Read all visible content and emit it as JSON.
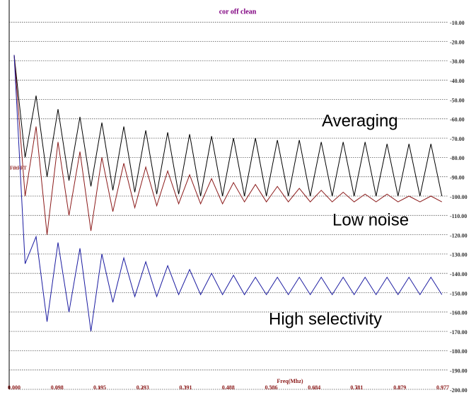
{
  "chart_data": {
    "type": "line",
    "title": "cor off clean",
    "xlabel": "Freq(Mhz)",
    "ylabel": "FiltFFT",
    "x": [
      0,
      0.025,
      0.05,
      0.075,
      0.1,
      0.125,
      0.15,
      0.175,
      0.2,
      0.225,
      0.25,
      0.275,
      0.3,
      0.325,
      0.35,
      0.375,
      0.4,
      0.425,
      0.45,
      0.475,
      0.5,
      0.525,
      0.55,
      0.575,
      0.6,
      0.625,
      0.65,
      0.675,
      0.7,
      0.725,
      0.75,
      0.775,
      0.8,
      0.825,
      0.85,
      0.875,
      0.9,
      0.925,
      0.95,
      0.975
    ],
    "series": [
      {
        "name": "Averaging",
        "color": "#000000",
        "values": [
          -27,
          -80,
          -48,
          -90,
          -55,
          -92,
          -59,
          -95,
          -62,
          -97,
          -64,
          -98,
          -66,
          -99,
          -67,
          -99,
          -68,
          -100,
          -69,
          -100,
          -70,
          -100,
          -70,
          -100,
          -71,
          -100,
          -71,
          -100,
          -72,
          -100,
          -72,
          -100,
          -72,
          -100,
          -73,
          -100,
          -73,
          -100,
          -73,
          -100
        ]
      },
      {
        "name": "Low noise",
        "color": "#8b1a1a",
        "values": [
          -27,
          -100,
          -64,
          -120,
          -72,
          -110,
          -77,
          -118,
          -80,
          -108,
          -83,
          -106,
          -85,
          -105,
          -87,
          -104,
          -89,
          -104,
          -91,
          -104,
          -93,
          -103,
          -94,
          -103,
          -95,
          -103,
          -96,
          -103,
          -97,
          -103,
          -98,
          -103,
          -99,
          -103,
          -99,
          -103,
          -100,
          -103,
          -100,
          -103
        ]
      },
      {
        "name": "High selectivity",
        "color": "#1a1aa0",
        "values": [
          -27,
          -135,
          -121,
          -165,
          -124,
          -160,
          -127,
          -170,
          -130,
          -155,
          -132,
          -152,
          -134,
          -152,
          -136,
          -151,
          -138,
          -151,
          -140,
          -151,
          -141,
          -151,
          -142,
          -151,
          -142,
          -151,
          -142,
          -151,
          -142,
          -151,
          -142,
          -151,
          -142,
          -151,
          -142,
          -151,
          -142,
          -151,
          -142,
          -151
        ]
      }
    ],
    "xlim": [
      0,
      0.977
    ],
    "xticks": [
      {
        "value": 0,
        "label": "0.000"
      },
      0.098,
      0.195,
      0.293,
      0.391,
      0.488,
      0.586,
      0.684,
      0.781,
      0.879,
      0.977
    ],
    "ylim": [
      -200,
      0
    ],
    "yticks": [
      {
        "value": -10,
        "label": "-10.00"
      },
      {
        "value": -20,
        "label": "-20.00"
      },
      {
        "value": -30,
        "label": "-30.00"
      },
      {
        "value": -40,
        "label": "-40.00"
      },
      {
        "value": -50,
        "label": "-50.00"
      },
      {
        "value": -60,
        "label": "-60.00"
      },
      {
        "value": -70,
        "label": "-70.00"
      },
      {
        "value": -80,
        "label": "-80.00"
      },
      {
        "value": -90,
        "label": "-90.00"
      },
      {
        "value": -100,
        "label": "-100.00"
      },
      {
        "value": -110,
        "label": "-110.00"
      },
      {
        "value": -120,
        "label": "-120.00"
      },
      {
        "value": -130,
        "label": "-130.00"
      },
      {
        "value": -140,
        "label": "-140.00"
      },
      {
        "value": -150,
        "label": "-150.00"
      },
      {
        "value": -160,
        "label": "-160.00"
      },
      {
        "value": -170,
        "label": "-170.00"
      },
      {
        "value": -180,
        "label": "-180.00"
      },
      {
        "value": -190,
        "label": "-190.00"
      },
      {
        "value": -200,
        "label": "-200.00"
      }
    ],
    "grid": true
  }
}
